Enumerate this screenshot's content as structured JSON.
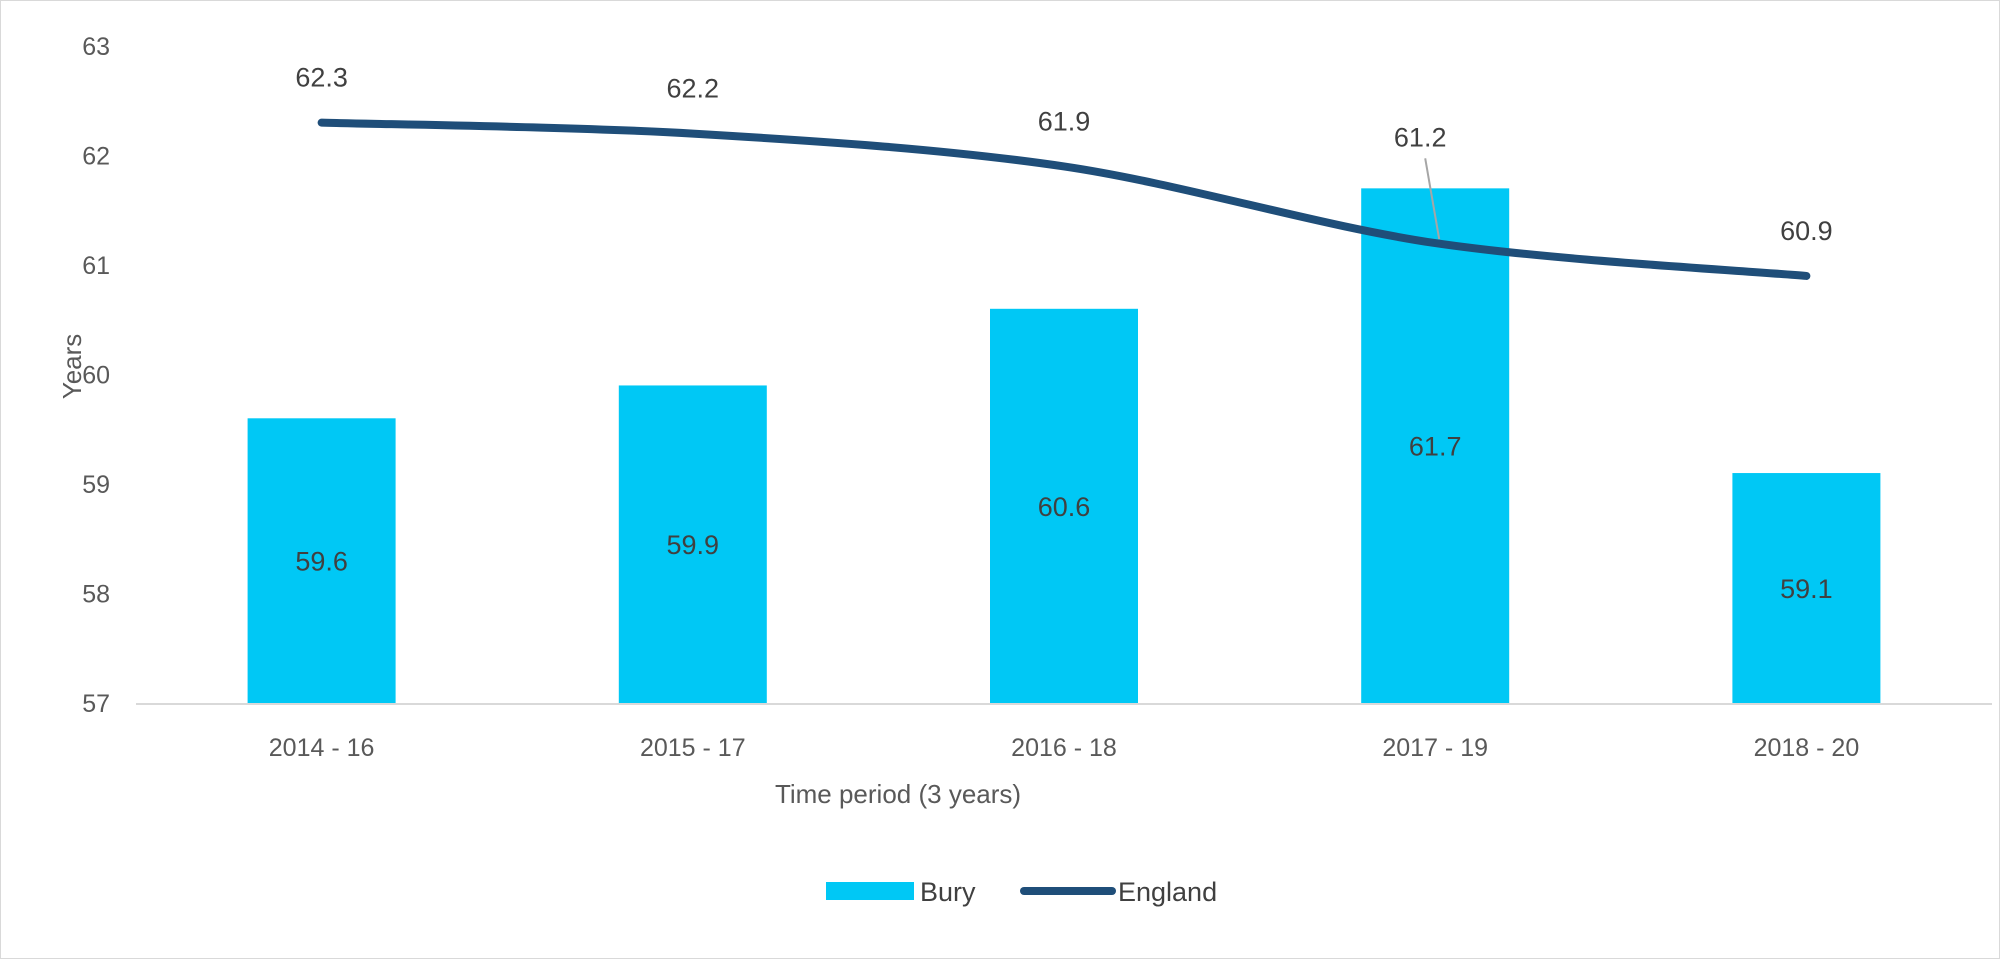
{
  "chart_data": {
    "type": "bar",
    "categories": [
      "2014 - 16",
      "2015 - 17",
      "2016 - 18",
      "2017 - 19",
      "2018 - 20"
    ],
    "series": [
      {
        "name": "Bury",
        "type": "bar",
        "color": "#00c8f5",
        "values": [
          59.6,
          59.9,
          60.6,
          61.7,
          59.1
        ],
        "labels": [
          "59.6",
          "59.9",
          "60.6",
          "61.7",
          "59.1"
        ]
      },
      {
        "name": "England",
        "type": "line",
        "color": "#1f4e79",
        "values": [
          62.3,
          62.2,
          61.9,
          61.2,
          60.9
        ],
        "labels": [
          "62.3",
          "62.2",
          "61.9",
          "61.2",
          "60.9"
        ]
      }
    ],
    "title": "",
    "xlabel": "Time period (3 years)",
    "ylabel": "Years",
    "ylim": [
      57,
      63
    ],
    "yticks": [
      "57",
      "58",
      "59",
      "60",
      "61",
      "62",
      "63"
    ],
    "grid": false,
    "legend_position": "bottom"
  }
}
